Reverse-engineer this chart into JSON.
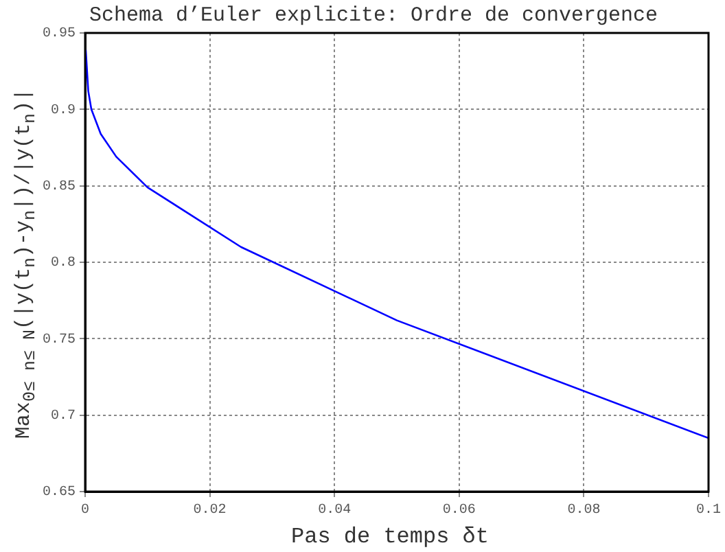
{
  "chart_data": {
    "type": "line",
    "title": "Schema d’Euler explicite: Ordre de convergence",
    "xlabel": "Pas de temps δt",
    "ylabel": "Max$_{0≤ n≤ N}$(|y(t$_{n}$)-y$_{n}$|)/|y(t$_{n}$)|",
    "x": [
      0.0001,
      0.0005,
      0.001,
      0.0025,
      0.005,
      0.01,
      0.025,
      0.05,
      0.1
    ],
    "series": [
      {
        "color": "#0000ff",
        "values": [
          0.939,
          0.912,
          0.9,
          0.884,
          0.869,
          0.849,
          0.81,
          0.762,
          0.685
        ]
      }
    ],
    "xlim": [
      0,
      0.1
    ],
    "xticks": [
      0,
      0.02,
      0.04,
      0.06,
      0.08,
      0.1
    ],
    "ylim": [
      0.65,
      0.95
    ],
    "yticks": [
      0.65,
      0.7,
      0.75,
      0.8,
      0.85,
      0.9,
      0.95
    ],
    "grid": true,
    "line_style": "solid",
    "marker": "none"
  }
}
